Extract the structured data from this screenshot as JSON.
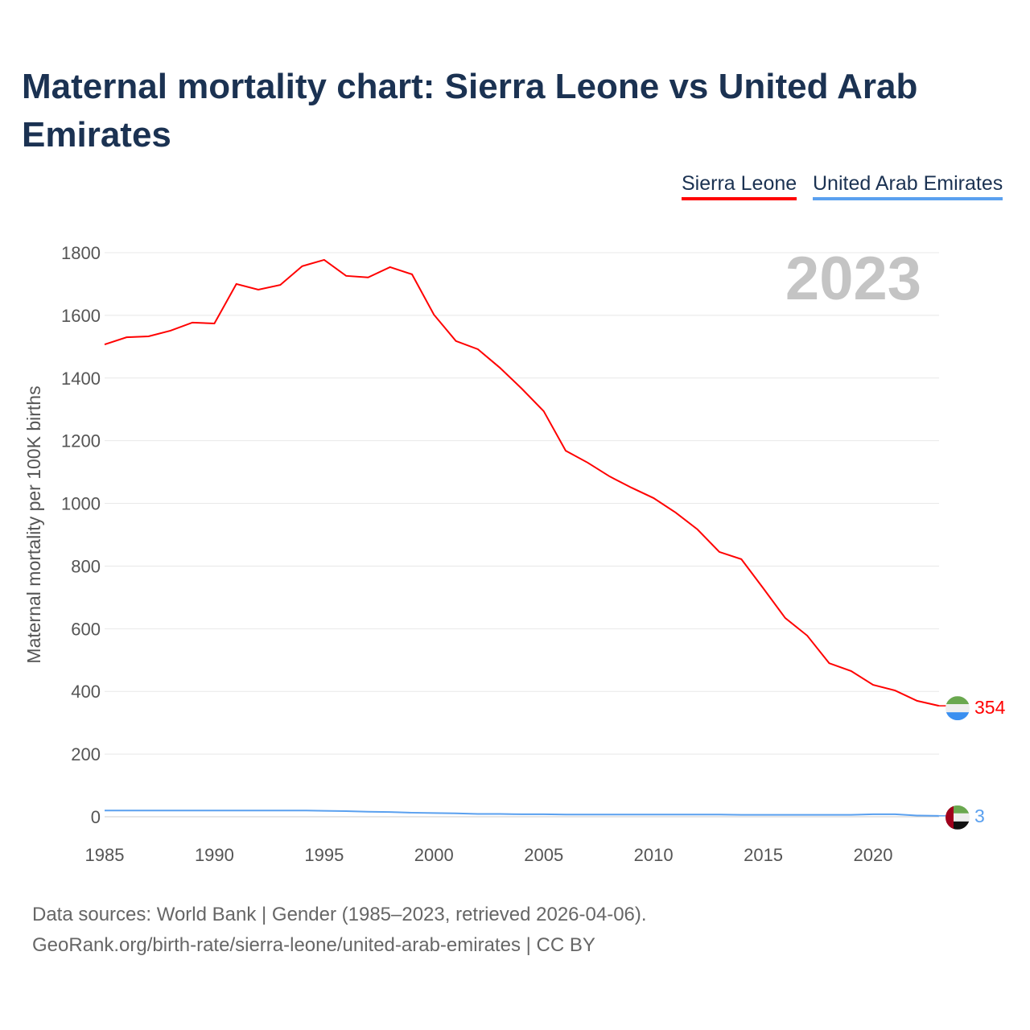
{
  "title": "Maternal mortality chart: Sierra Leone vs United Arab Emirates",
  "footer": {
    "line1": "Data sources: World Bank | Gender (1985–2023, retrieved 2026-04-06).",
    "line2": "GeoRank.org/birth-rate/sierra-leone/united-arab-emirates | CC BY"
  },
  "chart_data": {
    "type": "line",
    "title": "Maternal mortality chart: Sierra Leone vs United Arab Emirates",
    "year_label": "2023",
    "xlabel": "",
    "ylabel": "Maternal mortality per 100K births",
    "xlim": [
      1985,
      2023
    ],
    "ylim": [
      0,
      1800
    ],
    "xticks": [
      "1985",
      "1990",
      "1995",
      "2000",
      "2005",
      "2010",
      "2015",
      "2020"
    ],
    "yticks": [
      "0",
      "200",
      "400",
      "600",
      "800",
      "1000",
      "1200",
      "1400",
      "1600",
      "1800"
    ],
    "grid": true,
    "legend": "top-right",
    "x": [
      1985,
      1986,
      1987,
      1988,
      1989,
      1990,
      1991,
      1992,
      1993,
      1994,
      1995,
      1996,
      1997,
      1998,
      1999,
      2000,
      2001,
      2002,
      2003,
      2004,
      2005,
      2006,
      2007,
      2008,
      2009,
      2010,
      2011,
      2012,
      2013,
      2014,
      2015,
      2016,
      2017,
      2018,
      2019,
      2020,
      2021,
      2022,
      2023
    ],
    "series": [
      {
        "name": "Sierra Leone",
        "color": "#ff0000",
        "end_label": "354",
        "values": [
          1507,
          1530,
          1533,
          1551,
          1577,
          1574,
          1700,
          1682,
          1697,
          1757,
          1777,
          1726,
          1721,
          1754,
          1731,
          1602,
          1518,
          1492,
          1433,
          1366,
          1294,
          1168,
          1130,
          1086,
          1050,
          1017,
          971,
          917,
          845,
          822,
          729,
          634,
          578,
          490,
          465,
          421,
          403,
          370,
          354
        ]
      },
      {
        "name": "United Arab Emirates",
        "color": "#5aa0ef",
        "end_label": "3",
        "values": [
          20,
          20,
          20,
          20,
          20,
          20,
          20,
          20,
          20,
          20,
          19,
          18,
          16,
          15,
          13,
          12,
          11,
          9,
          9,
          8,
          8,
          7,
          7,
          7,
          7,
          7,
          7,
          7,
          7,
          6,
          6,
          6,
          6,
          6,
          6,
          8,
          8,
          4,
          3
        ]
      }
    ]
  }
}
